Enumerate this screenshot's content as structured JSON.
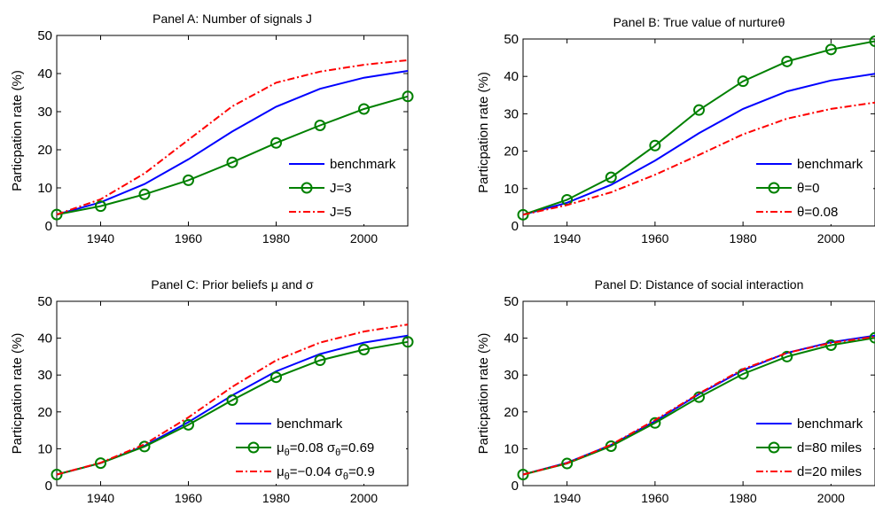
{
  "chart_data": [
    {
      "type": "line",
      "title": "Panel A: Number of signals J",
      "ylabel": "Particpation rate (%)",
      "xlim": [
        1930,
        2010
      ],
      "ylim": [
        0,
        50
      ],
      "xticks": [
        1940,
        1960,
        1980,
        2000
      ],
      "yticks": [
        0,
        10,
        20,
        30,
        40,
        50
      ],
      "grid": false,
      "legend_position": "bottom-right",
      "x": [
        1930,
        1940,
        1950,
        1960,
        1970,
        1980,
        1990,
        2000,
        2010
      ],
      "series": [
        {
          "name": "benchmark",
          "style": "solid",
          "color": "#0000ff",
          "marker": "none",
          "values": [
            3,
            6.2,
            11,
            17.5,
            24.8,
            31.3,
            36,
            38.9,
            40.7
          ]
        },
        {
          "name": "J=3",
          "style": "solid",
          "color": "#008000",
          "marker": "circle",
          "values": [
            3,
            5.2,
            8.3,
            12,
            16.7,
            21.8,
            26.4,
            30.7,
            34
          ]
        },
        {
          "name": "J=5",
          "style": "dashdot",
          "color": "#ff0000",
          "marker": "none",
          "values": [
            3,
            7,
            13.8,
            22.6,
            31.4,
            37.6,
            40.5,
            42.3,
            43.5
          ]
        }
      ]
    },
    {
      "type": "line",
      "title": "Panel B: True value of nurtureθ",
      "ylabel": "Particpation rate (%)",
      "xlim": [
        1930,
        2010
      ],
      "ylim": [
        0,
        50
      ],
      "xticks": [
        1940,
        1960,
        1980,
        2000
      ],
      "yticks": [
        0,
        10,
        20,
        30,
        40,
        50
      ],
      "grid": false,
      "legend_position": "bottom-right",
      "x": [
        1930,
        1940,
        1950,
        1960,
        1970,
        1980,
        1990,
        2000,
        2010
      ],
      "series": [
        {
          "name": "benchmark",
          "style": "solid",
          "color": "#0000ff",
          "marker": "none",
          "values": [
            3,
            6.2,
            11,
            17.5,
            24.8,
            31.3,
            36,
            38.9,
            40.7
          ]
        },
        {
          "name": "θ=0",
          "style": "solid",
          "color": "#008000",
          "marker": "circle",
          "values": [
            3,
            7,
            13,
            21.5,
            31,
            38.7,
            44,
            47.2,
            49.4
          ]
        },
        {
          "name": "θ=0.08",
          "style": "dashdot",
          "color": "#ff0000",
          "marker": "none",
          "values": [
            3,
            5.6,
            9,
            13.7,
            19,
            24.5,
            28.7,
            31.3,
            33
          ]
        }
      ]
    },
    {
      "type": "line",
      "title": "Panel C: Prior beliefs μ and σ",
      "ylabel": "Particpation rate (%)",
      "xlim": [
        1930,
        2010
      ],
      "ylim": [
        0,
        50
      ],
      "xticks": [
        1940,
        1960,
        1980,
        2000
      ],
      "yticks": [
        0,
        10,
        20,
        30,
        40,
        50
      ],
      "grid": false,
      "legend_position": "bottom-right",
      "x": [
        1930,
        1940,
        1950,
        1960,
        1970,
        1980,
        1990,
        2000,
        2010
      ],
      "series": [
        {
          "name": "benchmark",
          "style": "solid",
          "color": "#0000ff",
          "marker": "none",
          "values": [
            3,
            6.1,
            10.8,
            17.2,
            24.5,
            31,
            35.7,
            38.8,
            40.7
          ]
        },
        {
          "name": "μθ=0.08 σθ=0.69",
          "style": "solid",
          "color": "#008000",
          "marker": "circle",
          "values": [
            3,
            6.1,
            10.6,
            16.5,
            23.2,
            29.4,
            34,
            36.9,
            39
          ]
        },
        {
          "name": "μθ=−0.04 σθ=0.9",
          "style": "dashdot",
          "color": "#ff0000",
          "marker": "none",
          "values": [
            3,
            6.2,
            11.2,
            18.5,
            26.8,
            34,
            38.8,
            41.8,
            43.7
          ]
        }
      ]
    },
    {
      "type": "line",
      "title": "Panel D: Distance of social interaction",
      "ylabel": "Particpation rate (%)",
      "xlim": [
        1930,
        2010
      ],
      "ylim": [
        0,
        50
      ],
      "xticks": [
        1940,
        1960,
        1980,
        2000
      ],
      "yticks": [
        0,
        10,
        20,
        30,
        40,
        50
      ],
      "grid": false,
      "legend_position": "bottom-right",
      "x": [
        1930,
        1940,
        1950,
        1960,
        1970,
        1980,
        1990,
        2000,
        2010
      ],
      "series": [
        {
          "name": "benchmark",
          "style": "solid",
          "color": "#0000ff",
          "marker": "none",
          "values": [
            3,
            6.2,
            11,
            17.5,
            24.8,
            31.3,
            36,
            38.9,
            40.7
          ]
        },
        {
          "name": "d=80 miles",
          "style": "solid",
          "color": "#008000",
          "marker": "circle",
          "values": [
            3,
            6,
            10.7,
            17,
            24,
            30.3,
            35,
            38.1,
            40.1
          ]
        },
        {
          "name": "d=20 miles",
          "style": "dashdot",
          "color": "#ff0000",
          "marker": "none",
          "values": [
            3,
            6.1,
            11.1,
            17.8,
            25,
            31.6,
            36,
            38.7,
            40.4
          ]
        }
      ]
    }
  ]
}
